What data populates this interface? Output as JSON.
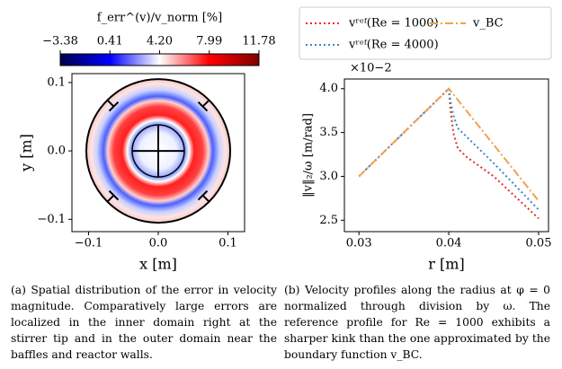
{
  "chart_data": [
    {
      "type": "field",
      "colorbar": {
        "label": "f_err^(v)/v_norm [%]",
        "colormap": "seismic",
        "lim": [
          -3.38,
          11.78
        ],
        "ticks": [
          {
            "value": -3.38,
            "label": "−3.38"
          },
          0.41,
          {
            "value": 4.2,
            "label": "4.20"
          },
          7.99,
          11.78
        ]
      },
      "xlabel": "x [m]",
      "ylabel": "y [m]",
      "xlim": [
        -0.1239,
        0.1239
      ],
      "ylim": [
        -0.118,
        0.113
      ],
      "xticks": [
        {
          "value": -0.1,
          "label": "−0.1"
        },
        {
          "value": 0,
          "label": "0.0"
        },
        {
          "value": 0.1,
          "label": "0.1"
        }
      ],
      "yticks": [
        {
          "value": -0.1,
          "label": "−0.1"
        },
        {
          "value": 0,
          "label": "0.0"
        },
        {
          "value": 0.1,
          "label": "0.1"
        }
      ]
    },
    {
      "type": "line",
      "xlabel": "r [m]",
      "ylabel": "‖v‖₂/ω [m/rad]",
      "y_multiplier": "×10−2",
      "x": [
        0.03,
        0.04,
        0.0402,
        0.0405,
        0.041,
        0.042,
        0.045,
        0.05
      ],
      "series": [
        {
          "name": "vʳᵉᶠ(Re = 1000)",
          "color": "#e3302a",
          "style": "dotted",
          "values": [
            3.0,
            4.0,
            3.75,
            3.5,
            3.32,
            3.22,
            3.0,
            2.52
          ]
        },
        {
          "name": "vʳᵉᶠ(Re = 4000)",
          "color": "#3a86c8",
          "style": "dotted",
          "values": [
            3.0,
            4.0,
            3.85,
            3.7,
            3.55,
            3.45,
            3.15,
            2.62
          ]
        },
        {
          "name": "v_BC",
          "color": "#f0a050",
          "style": "dashdot",
          "values": [
            3.0,
            4.0,
            3.974,
            3.936,
            3.872,
            3.744,
            3.36,
            2.72
          ]
        }
      ],
      "legend": "above",
      "xlim": [
        0.02838,
        0.0511
      ],
      "ylim": [
        2.37,
        4.11
      ],
      "xticks": [
        0.03,
        0.04,
        0.05
      ],
      "yticks": [
        2.5,
        {
          "value": 3.0,
          "label": "3.0"
        },
        3.5,
        {
          "value": 4.0,
          "label": "4.0"
        }
      ]
    }
  ],
  "captions": [
    "(a) Spatial distribution of the error in velocity magnitude. Comparatively large errors are localized in the inner domain right at the stirrer tip and in the outer domain near the baffles and reactor walls.",
    "(b) Velocity profiles along the radius at φ = 0 normalized through division by ω. The reference profile for Re = 1000 exhibits a sharper kink than the one approximated by the boundary function v_BC."
  ]
}
